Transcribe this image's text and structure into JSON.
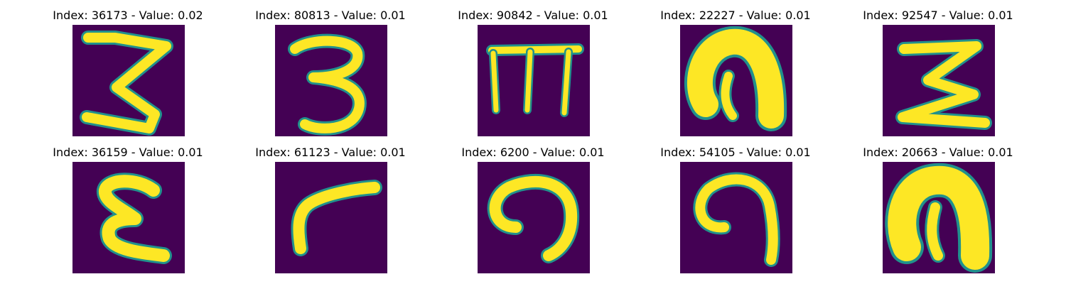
{
  "colors": {
    "background": "#440154",
    "mid": "#21918c",
    "mid2": "#5ec962",
    "high": "#fde725"
  },
  "figures": [
    {
      "title": "Index: 36173 - Value: 0.02",
      "glyph": "3-like"
    },
    {
      "title": "Index: 80813 - Value: 0.01",
      "glyph": "3-digit"
    },
    {
      "title": "Index: 90842 - Value: 0.01",
      "glyph": "m-like"
    },
    {
      "title": "Index: 22227 - Value: 0.01",
      "glyph": "thick-n"
    },
    {
      "title": "Index: 92547 - Value: 0.01",
      "glyph": "sigma-like"
    },
    {
      "title": "Index: 36159 - Value: 0.01",
      "glyph": "epsilon-like"
    },
    {
      "title": "Index: 61123 - Value: 0.01",
      "glyph": "r-like"
    },
    {
      "title": "Index: 6200 - Value: 0.01",
      "glyph": "n-hook"
    },
    {
      "title": "Index: 54105 - Value: 0.01",
      "glyph": "n-hook-2"
    },
    {
      "title": "Index: 20663 - Value: 0.01",
      "glyph": "thick-n-2"
    }
  ]
}
